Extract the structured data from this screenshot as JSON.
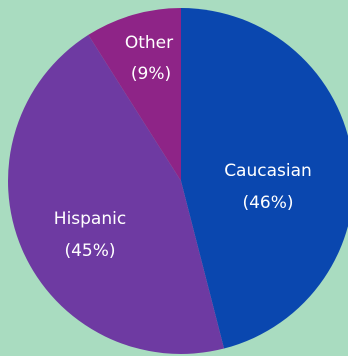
{
  "chart_data": {
    "type": "pie",
    "title": "",
    "slices": [
      {
        "label": "Caucasian",
        "pct_label": "(46%)",
        "value": 46,
        "color": "#0a47af"
      },
      {
        "label": "Hispanic",
        "pct_label": "(45%)",
        "value": 45,
        "color": "#6e3aa2"
      },
      {
        "label": "Other",
        "pct_label": "(9%)",
        "value": 9,
        "color": "#8e2487"
      }
    ],
    "legend": false
  }
}
